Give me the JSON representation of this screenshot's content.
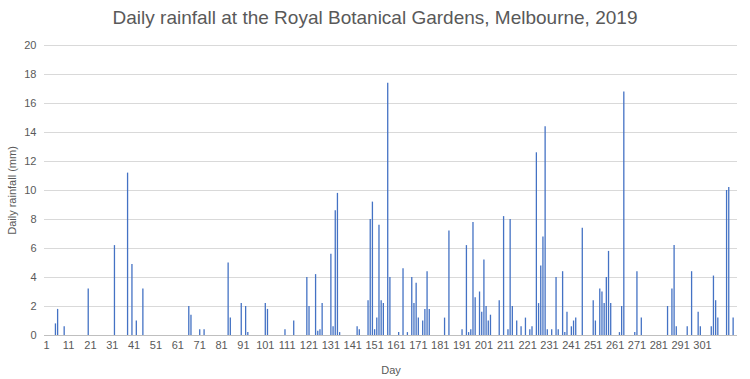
{
  "chart_data": {
    "type": "bar",
    "title": "Daily rainfall at the Royal Botanical Gardens, Melbourne, 2019",
    "x_label": "Day",
    "y_label": "Daily rainfall (mm)",
    "color": "#4472c4",
    "grid": true,
    "xlim": [
      0,
      317
    ],
    "xticks": [
      1,
      11,
      21,
      31,
      41,
      51,
      61,
      71,
      81,
      91,
      101,
      111,
      121,
      131,
      141,
      151,
      161,
      171,
      181,
      191,
      201,
      211,
      221,
      231,
      241,
      251,
      261,
      271,
      281,
      291,
      301
    ],
    "ylim": [
      0,
      20
    ],
    "yticks": [
      0,
      2,
      4,
      6,
      8,
      10,
      12,
      14,
      16,
      18,
      20
    ],
    "x": [
      5,
      6,
      9,
      20,
      32,
      38,
      40,
      42,
      45,
      66,
      67,
      71,
      73,
      84,
      85,
      90,
      92,
      93,
      101,
      102,
      110,
      114,
      120,
      121,
      124,
      125,
      126,
      127,
      131,
      132,
      133,
      134,
      135,
      143,
      144,
      148,
      149,
      150,
      151,
      152,
      153,
      154,
      155,
      157,
      158,
      162,
      164,
      166,
      168,
      169,
      170,
      171,
      173,
      174,
      175,
      176,
      183,
      185,
      191,
      193,
      194,
      195,
      196,
      197,
      199,
      200,
      201,
      202,
      203,
      204,
      208,
      210,
      212,
      213,
      214,
      216,
      218,
      220,
      222,
      223,
      225,
      226,
      227,
      228,
      229,
      230,
      232,
      234,
      235,
      237,
      238,
      239,
      241,
      242,
      243,
      246,
      251,
      252,
      254,
      255,
      256,
      257,
      258,
      259,
      263,
      264,
      265,
      270,
      271,
      273,
      285,
      287,
      288,
      289,
      294,
      296,
      299,
      300,
      305,
      306,
      307,
      308,
      312,
      313,
      315
    ],
    "values": [
      0.8,
      1.8,
      0.6,
      3.2,
      6.2,
      11.2,
      4.9,
      1.0,
      3.2,
      2.0,
      1.4,
      0.4,
      0.4,
      5.0,
      1.2,
      2.2,
      2.0,
      0.2,
      2.2,
      1.8,
      0.4,
      1.0,
      4.0,
      2.0,
      4.2,
      0.3,
      0.4,
      2.2,
      5.6,
      0.6,
      8.6,
      9.8,
      0.2,
      0.6,
      0.4,
      2.4,
      8.0,
      9.2,
      0.4,
      1.2,
      7.6,
      2.4,
      2.2,
      17.4,
      4.0,
      0.2,
      4.6,
      0.2,
      4.0,
      2.2,
      3.6,
      1.2,
      1.0,
      1.8,
      4.4,
      1.8,
      1.2,
      7.2,
      0.4,
      6.2,
      0.2,
      0.4,
      7.8,
      2.6,
      3.0,
      1.6,
      5.2,
      2.0,
      1.0,
      1.4,
      2.4,
      8.2,
      0.4,
      8.0,
      2.0,
      1.0,
      0.6,
      1.2,
      0.4,
      0.6,
      12.6,
      2.2,
      4.8,
      6.8,
      14.4,
      0.4,
      0.4,
      4.0,
      0.4,
      4.4,
      0.2,
      1.6,
      0.6,
      1.0,
      1.2,
      7.4,
      2.4,
      1.0,
      3.2,
      3.0,
      2.2,
      4.0,
      5.8,
      2.2,
      0.2,
      2.0,
      16.8,
      0.2,
      4.4,
      1.2,
      2.0,
      3.2,
      6.2,
      0.6,
      0.6,
      4.4,
      1.6,
      0.6,
      0.6,
      4.1,
      2.4,
      1.2,
      10.0,
      10.2,
      1.2
    ]
  }
}
